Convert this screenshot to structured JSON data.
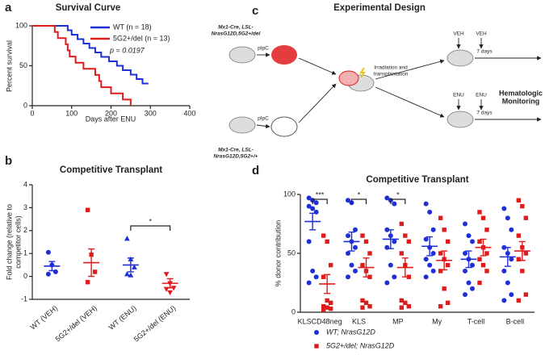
{
  "chart_data": [
    {
      "type": "line",
      "step": true,
      "panel": "a",
      "title": "Survival Curve",
      "xlabel": "Days after ENU",
      "ylabel": "Percent survival",
      "xlim": [
        0,
        400
      ],
      "xticks": [
        0,
        100,
        200,
        300,
        400
      ],
      "ylim": [
        0,
        100
      ],
      "yticks": [
        0,
        50,
        100
      ],
      "series": [
        {
          "name": "WT (n = 18)",
          "color": "#1f2fd8",
          "x": [
            0,
            90,
            100,
            115,
            130,
            145,
            160,
            175,
            195,
            215,
            230,
            250,
            265,
            280,
            295
          ],
          "values": [
            100,
            94.4,
            88.9,
            83.3,
            77.8,
            72.2,
            66.7,
            61.1,
            55.6,
            50,
            44.4,
            38.9,
            33.3,
            27.8,
            27.8
          ]
        },
        {
          "name": "5G2+/del (n = 13)",
          "color": "#e01b1b",
          "x": [
            0,
            57,
            65,
            85,
            90,
            95,
            110,
            130,
            160,
            170,
            175,
            200,
            230,
            250
          ],
          "values": [
            100,
            92.3,
            84.6,
            76.9,
            69.2,
            61.5,
            53.8,
            46.2,
            38.5,
            30.8,
            23.1,
            15.4,
            7.7,
            0
          ]
        }
      ],
      "annotation": "p = 0.0197"
    },
    {
      "type": "dot",
      "panel": "b",
      "title": "Competitive Transplant",
      "ylabel": [
        "Fold change (relative to",
        "competitor cells)"
      ],
      "ylim": [
        -1,
        4
      ],
      "yticks": [
        -1,
        0,
        1,
        2,
        3,
        4
      ],
      "categories": [
        "WT (VEH)",
        "5G2+/del (VEH)",
        "WT (ENU)",
        "5G2+/del (ENU)"
      ],
      "colors": [
        "#1f2fd8",
        "#e01b1b",
        "#1f2fd8",
        "#e01b1b"
      ],
      "markers": [
        "circle",
        "square",
        "triangle",
        "triangle-down"
      ],
      "points": [
        [
          1.05,
          0.5,
          0.2,
          0.1
        ],
        [
          2.9,
          0.95,
          0.2,
          -0.25
        ],
        [
          1.65,
          0.75,
          0.4,
          0.1,
          0.05
        ],
        [
          0.1,
          -0.3,
          -0.5,
          -0.55,
          -0.7
        ]
      ],
      "values": [
        0.45,
        0.6,
        0.5,
        -0.3
      ],
      "errors": [
        0.2,
        0.6,
        0.3,
        0.2
      ],
      "significance": [
        {
          "label": "*",
          "between": [
            2,
            3
          ]
        }
      ]
    },
    {
      "type": "dot",
      "panel": "d",
      "title": "Competitive Transplant",
      "ylabel": "% donor contribution",
      "ylim": [
        0,
        100
      ],
      "yticks": [
        0,
        50,
        100
      ],
      "categories": [
        "KLSCD48neg",
        "KLS",
        "MP",
        "My",
        "T-cell",
        "B-cell"
      ],
      "series": [
        {
          "name": "WT; NrasG12D",
          "color": "#1f2fd8",
          "marker": "circle",
          "values": [
            77,
            60,
            62,
            56,
            45,
            47
          ],
          "errors": [
            7,
            8,
            8,
            8,
            7,
            8
          ],
          "points": [
            [
              97,
              95,
              93,
              90,
              88,
              85,
              60,
              35,
              30,
              25
            ],
            [
              95,
              93,
              70,
              65,
              60,
              55,
              50,
              40,
              35,
              30
            ],
            [
              97,
              95,
              92,
              70,
              65,
              60,
              55,
              40,
              30,
              25
            ],
            [
              92,
              85,
              70,
              62,
              55,
              50,
              45,
              40,
              35,
              30
            ],
            [
              75,
              65,
              60,
              50,
              45,
              40,
              35,
              25,
              20,
              15
            ],
            [
              88,
              80,
              70,
              55,
              50,
              45,
              35,
              25,
              15,
              10
            ]
          ]
        },
        {
          "name": "5G2+/del; NrasG12D",
          "color": "#e01b1b",
          "marker": "square",
          "values": [
            24,
            38,
            38,
            44,
            55,
            52
          ],
          "errors": [
            8,
            8,
            8,
            8,
            7,
            8
          ],
          "points": [
            [
              65,
              60,
              40,
              30,
              10,
              8,
              5,
              4,
              3,
              2
            ],
            [
              65,
              60,
              50,
              40,
              35,
              30,
              10,
              8,
              5,
              4
            ],
            [
              75,
              65,
              60,
              50,
              40,
              30,
              10,
              8,
              5,
              4
            ],
            [
              80,
              70,
              60,
              50,
              45,
              40,
              35,
              20,
              8,
              5
            ],
            [
              85,
              80,
              70,
              60,
              55,
              50,
              45,
              40,
              35,
              25
            ],
            [
              95,
              90,
              80,
              65,
              55,
              50,
              45,
              35,
              15,
              10
            ]
          ]
        }
      ],
      "significance": [
        {
          "label": "***",
          "category": 0
        },
        {
          "label": "*",
          "category": 1
        },
        {
          "label": "*",
          "category": 2
        }
      ]
    }
  ],
  "diagram": {
    "panel": "c",
    "title": "Experimental Design",
    "donor_top": [
      "Mx1-Cre, LSL-",
      "NrasG12D,5G2+/del"
    ],
    "donor_bottom": [
      "Mx1-Cre, LSL-",
      "NrasG12D,5G2+/+"
    ],
    "treatment_top": "pIpC",
    "treatment_bottom": "pIpC",
    "transplant": [
      "Irradiation and",
      "transplantation"
    ],
    "arm_top": [
      "VEH",
      "VEH",
      "7 days"
    ],
    "arm_bottom": [
      "ENU",
      "ENU",
      "7 days"
    ],
    "monitoring": [
      "Hematologic",
      "Monitoring"
    ]
  }
}
